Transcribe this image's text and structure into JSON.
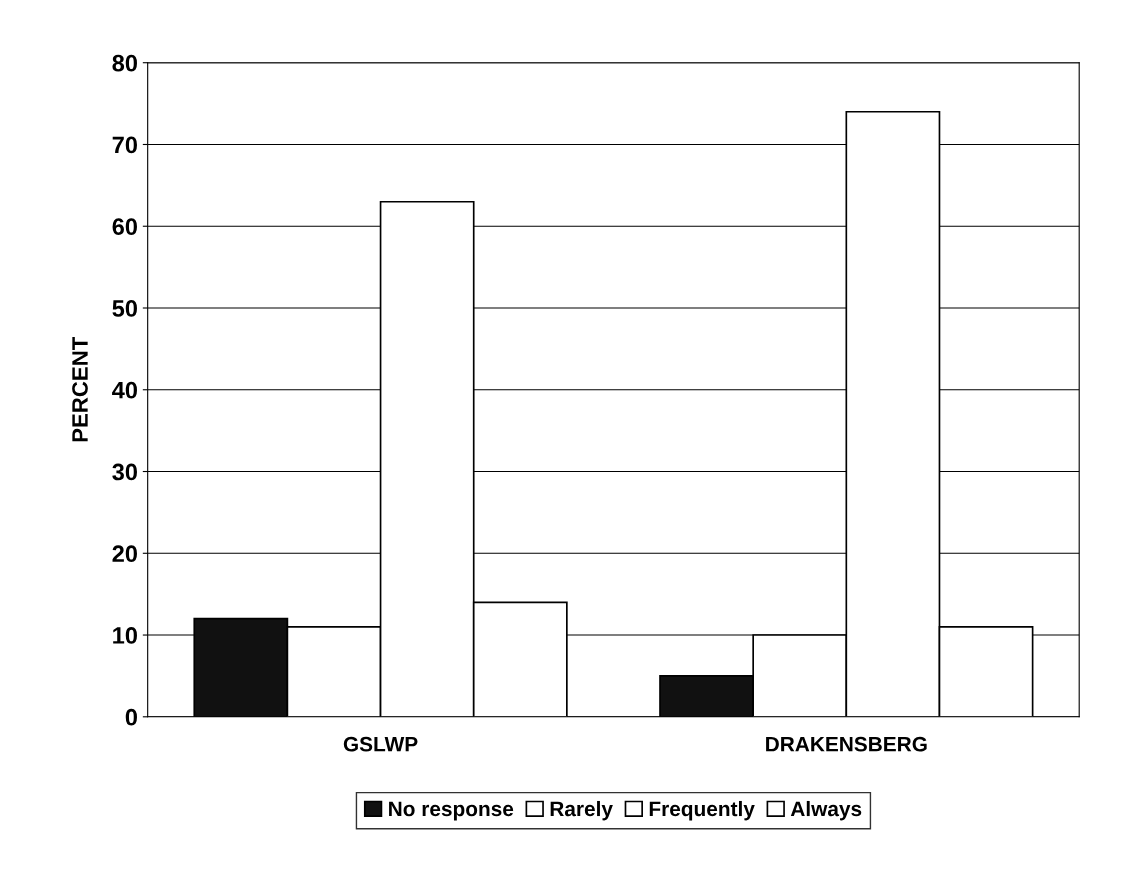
{
  "chart_data": {
    "type": "bar",
    "ylabel": "PERCENT",
    "categories": [
      "GSLWP",
      "DRAKENSBERG"
    ],
    "series": [
      {
        "name": "No response",
        "color": "#111111",
        "values": [
          12,
          5
        ]
      },
      {
        "name": "Rarely",
        "color": "#ffffff",
        "values": [
          11,
          10
        ]
      },
      {
        "name": "Frequently",
        "color": "#ffffff",
        "values": [
          63,
          74
        ]
      },
      {
        "name": "Always",
        "color": "#ffffff",
        "values": [
          14,
          11
        ]
      }
    ],
    "ylim": [
      0,
      80
    ],
    "yticks": [
      0,
      10,
      20,
      30,
      40,
      50,
      60,
      70,
      80
    ],
    "grid": "y",
    "legend": "bottom"
  }
}
